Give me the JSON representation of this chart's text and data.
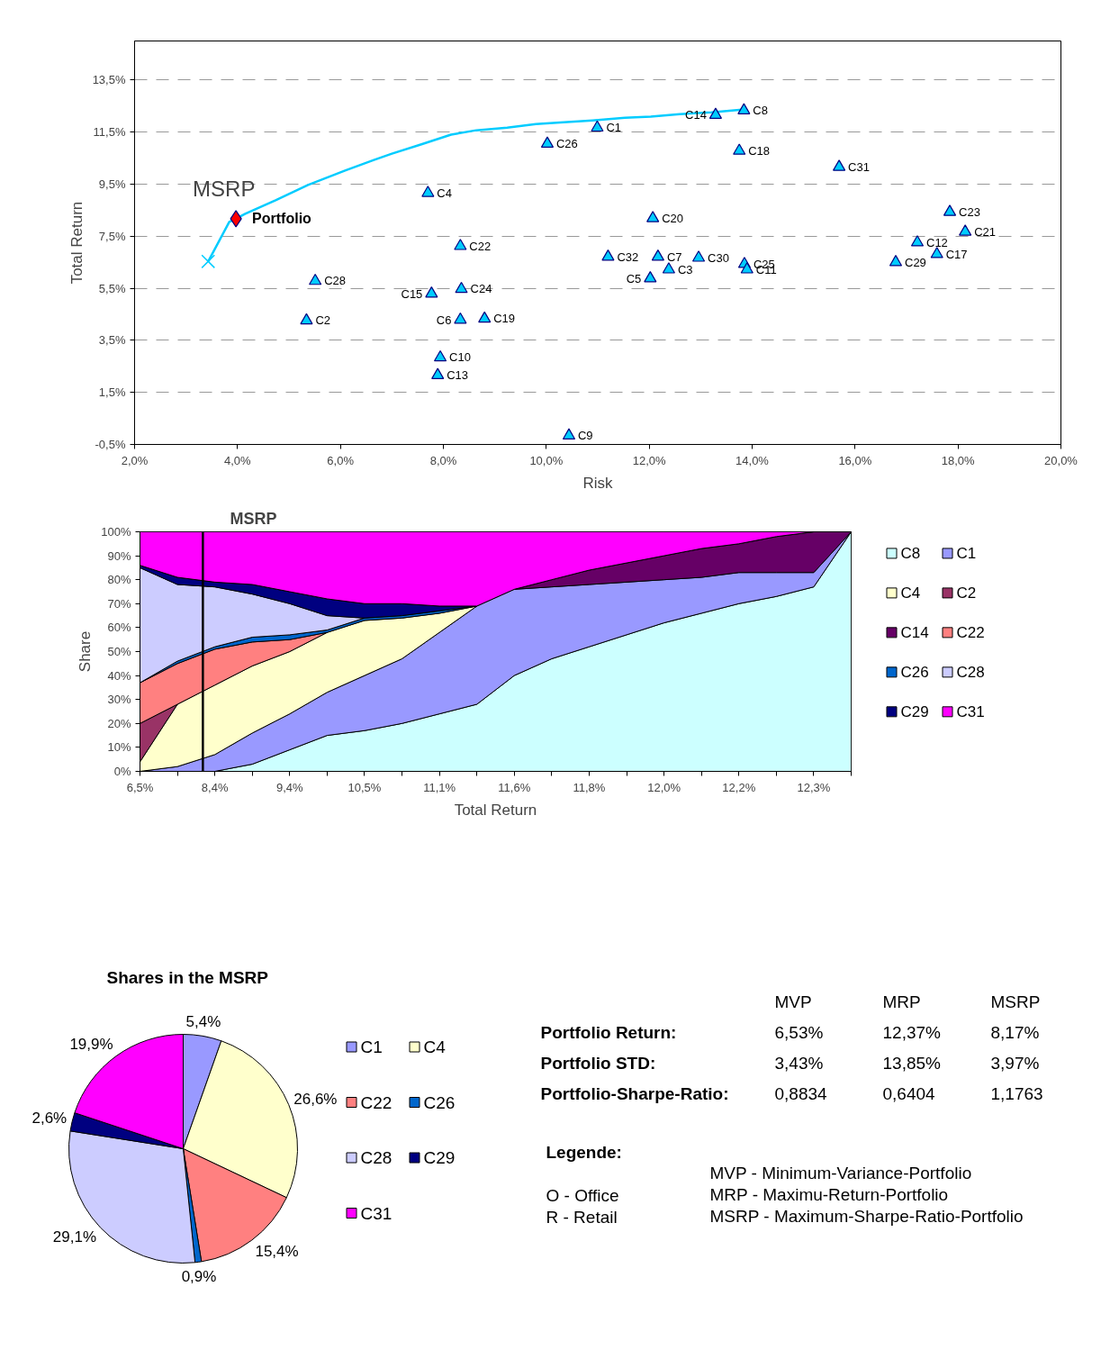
{
  "chart_data": [
    {
      "type": "scatter",
      "xlabel": "Risk",
      "ylabel": "Total Return",
      "xlim": [
        2,
        20
      ],
      "ylim": [
        -0.5,
        15
      ],
      "xticks": [
        {
          "value": 2,
          "label": "2,0%"
        },
        {
          "value": 4,
          "label": "4,0%"
        },
        {
          "value": 6,
          "label": "6,0%"
        },
        {
          "value": 8,
          "label": "8,0%"
        },
        {
          "value": 10,
          "label": "10,0%"
        },
        {
          "value": 12,
          "label": "12,0%"
        },
        {
          "value": 14,
          "label": "14,0%"
        },
        {
          "value": 16,
          "label": "16,0%"
        },
        {
          "value": 18,
          "label": "18,0%"
        },
        {
          "value": 20,
          "label": "20,0%"
        }
      ],
      "yticks": [
        {
          "value": -0.5,
          "label": "-0,5%"
        },
        {
          "value": 1.5,
          "label": "1,5%"
        },
        {
          "value": 3.5,
          "label": "3,5%"
        },
        {
          "value": 5.5,
          "label": "5,5%"
        },
        {
          "value": 7.5,
          "label": "7,5%"
        },
        {
          "value": 9.5,
          "label": "9,5%"
        },
        {
          "value": 11.5,
          "label": "11,5%"
        },
        {
          "value": 13.5,
          "label": "13,5%"
        }
      ],
      "grid": "y",
      "marker": "triangle",
      "color": "#00ccff",
      "annotations": [
        {
          "text": "MSRP",
          "x": 3.97,
          "y": 8.17
        }
      ],
      "series": [
        {
          "type": "line",
          "marker": "none",
          "x": [
            3.43,
            3.84,
            3.97,
            4.15,
            4.74,
            5.37,
            6.09,
            6.65,
            7.0,
            7.56,
            8.15,
            8.64,
            9.24,
            9.8,
            10.34,
            10.9,
            11.53,
            12.03,
            12.59,
            13.21,
            13.85
          ],
          "values": [
            6.53,
            8.05,
            8.17,
            8.36,
            8.88,
            9.47,
            10.02,
            10.43,
            10.67,
            11.02,
            11.4,
            11.57,
            11.67,
            11.81,
            11.88,
            11.95,
            12.05,
            12.09,
            12.19,
            12.26,
            12.37
          ]
        },
        {
          "marker": "cross",
          "x": [
            3.43
          ],
          "values": [
            6.53
          ]
        },
        {
          "name": "Portfolio",
          "marker": "diamond",
          "color": "#ff0000",
          "x": [
            3.97
          ],
          "values": [
            8.17
          ]
        },
        {
          "name": "C8",
          "x": [
            13.84
          ],
          "values": [
            12.33
          ]
        },
        {
          "name": "C14",
          "x": [
            13.29
          ],
          "values": [
            12.16
          ]
        },
        {
          "name": "C1",
          "x": [
            10.99
          ],
          "values": [
            11.67
          ]
        },
        {
          "name": "C26",
          "x": [
            10.02
          ],
          "values": [
            11.05
          ]
        },
        {
          "name": "C18",
          "x": [
            13.75
          ],
          "values": [
            10.78
          ]
        },
        {
          "name": "C31",
          "x": [
            15.69
          ],
          "values": [
            10.16
          ]
        },
        {
          "name": "C4",
          "x": [
            7.7
          ],
          "values": [
            9.16
          ]
        },
        {
          "name": "C20",
          "x": [
            12.07
          ],
          "values": [
            8.19
          ]
        },
        {
          "name": "C23",
          "x": [
            17.84
          ],
          "values": [
            8.43
          ]
        },
        {
          "name": "C21",
          "x": [
            18.14
          ],
          "values": [
            7.67
          ]
        },
        {
          "name": "C22",
          "x": [
            8.33
          ],
          "values": [
            7.12
          ]
        },
        {
          "name": "C12",
          "x": [
            17.21
          ],
          "values": [
            7.26
          ]
        },
        {
          "name": "C17",
          "x": [
            17.59
          ],
          "values": [
            6.81
          ]
        },
        {
          "name": "C32",
          "x": [
            11.2
          ],
          "values": [
            6.71
          ]
        },
        {
          "name": "C7",
          "x": [
            12.17
          ],
          "values": [
            6.71
          ]
        },
        {
          "name": "C30",
          "x": [
            12.96
          ],
          "values": [
            6.67
          ]
        },
        {
          "name": "C29",
          "x": [
            16.79
          ],
          "values": [
            6.5
          ]
        },
        {
          "name": "C25",
          "x": [
            13.85
          ],
          "values": [
            6.43
          ]
        },
        {
          "name": "C11",
          "x": [
            13.9
          ],
          "values": [
            6.22
          ]
        },
        {
          "name": "C3",
          "x": [
            12.38
          ],
          "values": [
            6.22
          ]
        },
        {
          "name": "C5",
          "x": [
            12.02
          ],
          "values": [
            5.88
          ]
        },
        {
          "name": "C28",
          "x": [
            5.51
          ],
          "values": [
            5.78
          ]
        },
        {
          "name": "C15",
          "x": [
            7.77
          ],
          "values": [
            5.29
          ]
        },
        {
          "name": "C24",
          "x": [
            8.35
          ],
          "values": [
            5.47
          ]
        },
        {
          "name": "C2",
          "x": [
            5.34
          ],
          "values": [
            4.26
          ]
        },
        {
          "name": "C6",
          "x": [
            8.33
          ],
          "values": [
            4.29
          ]
        },
        {
          "name": "C19",
          "x": [
            8.8
          ],
          "values": [
            4.33
          ]
        },
        {
          "name": "C10",
          "x": [
            7.94
          ],
          "values": [
            2.84
          ]
        },
        {
          "name": "C13",
          "x": [
            7.89
          ],
          "values": [
            2.16
          ]
        },
        {
          "name": "C9",
          "x": [
            10.44
          ],
          "values": [
            -0.16
          ]
        }
      ]
    },
    {
      "type": "area",
      "stacked": true,
      "xlabel": "Total Return",
      "ylabel": "Share",
      "ylim": [
        0,
        100
      ],
      "legend": "right",
      "categories": [
        "6,5%",
        null,
        "8,4%",
        null,
        "9,4%",
        null,
        "10,5%",
        null,
        "11,1%",
        null,
        "11,6%",
        null,
        "11,8%",
        null,
        "12,0%",
        null,
        "12,2%",
        null,
        "12,3%",
        null
      ],
      "yticks": [
        {
          "value": 0,
          "label": "0%"
        },
        {
          "value": 10,
          "label": "10%"
        },
        {
          "value": 20,
          "label": "20%"
        },
        {
          "value": 30,
          "label": "30%"
        },
        {
          "value": 40,
          "label": "40%"
        },
        {
          "value": 50,
          "label": "50%"
        },
        {
          "value": 60,
          "label": "60%"
        },
        {
          "value": 70,
          "label": "70%"
        },
        {
          "value": 80,
          "label": "80%"
        },
        {
          "value": 90,
          "label": "90%"
        },
        {
          "value": 100,
          "label": "100%"
        }
      ],
      "annotations": [
        "MSRP"
      ],
      "series": [
        {
          "name": "C8",
          "color": "#ccffff",
          "values": [
            null,
            null,
            0,
            3,
            9,
            15,
            17,
            20,
            24,
            28,
            40,
            47,
            52,
            57,
            62,
            66,
            70,
            73,
            77,
            100
          ]
        },
        {
          "name": "C1",
          "color": "#9999ff",
          "values": [
            0,
            2,
            7,
            13,
            15,
            18,
            23,
            27,
            34,
            41,
            36,
            30,
            26,
            22,
            18,
            15,
            13,
            10,
            6,
            0
          ]
        },
        {
          "name": "C4",
          "color": "#ffffcc",
          "values": [
            4,
            26,
            29,
            28,
            26,
            25,
            23,
            17,
            8,
            0,
            null,
            null,
            null,
            null,
            null,
            null,
            null,
            null,
            null,
            null
          ]
        },
        {
          "name": "C2",
          "color": "#993366",
          "values": [
            16,
            0,
            null,
            null,
            null,
            null,
            null,
            null,
            null,
            null,
            null,
            null,
            null,
            null,
            null,
            null,
            null,
            null,
            null,
            null
          ]
        },
        {
          "name": "C14",
          "color": "#660066",
          "values": [
            null,
            null,
            null,
            null,
            null,
            null,
            null,
            null,
            null,
            null,
            0,
            3,
            6,
            8,
            10,
            12,
            12,
            15,
            17,
            0
          ]
        },
        {
          "name": "C22",
          "color": "#ff8080",
          "values": [
            17,
            17,
            15,
            10,
            5,
            0,
            null,
            null,
            null,
            null,
            null,
            null,
            null,
            null,
            null,
            null,
            null,
            null,
            null,
            null
          ]
        },
        {
          "name": "C26",
          "color": "#0066cc",
          "values": [
            0,
            1,
            1,
            2,
            2,
            1,
            1,
            1,
            1,
            0,
            null,
            null,
            null,
            null,
            null,
            null,
            null,
            null,
            null,
            null
          ]
        },
        {
          "name": "C28",
          "color": "#ccccff",
          "values": [
            48,
            32,
            25,
            18,
            13,
            6,
            0,
            null,
            null,
            null,
            null,
            null,
            null,
            null,
            null,
            null,
            null,
            null,
            null,
            null
          ]
        },
        {
          "name": "C29",
          "color": "#000080",
          "values": [
            1,
            3,
            2,
            4,
            5,
            7,
            6,
            5,
            2,
            0,
            null,
            null,
            null,
            null,
            null,
            null,
            null,
            null,
            null,
            null
          ]
        },
        {
          "name": "C31",
          "color": "#ff00ff",
          "values": [
            14,
            19,
            21,
            22,
            25,
            28,
            30,
            30,
            31,
            31,
            24,
            20,
            16,
            13,
            10,
            7,
            5,
            2,
            0,
            null
          ]
        }
      ]
    },
    {
      "type": "pie",
      "title": "Shares in the MSRP",
      "legend": "right",
      "categories": [
        "C1",
        "C4",
        "C22",
        "C26",
        "C28",
        "C29",
        "C31"
      ],
      "values": [
        5.4,
        26.6,
        15.4,
        0.9,
        29.1,
        2.6,
        19.9
      ],
      "value_labels": [
        "5,4%",
        "26,6%",
        "15,4%",
        "0,9%",
        "29,1%",
        "2,6%",
        "19,9%"
      ],
      "colors": [
        "#9999ff",
        "#ffffcc",
        "#ff8080",
        "#0066cc",
        "#ccccff",
        "#000080",
        "#ff00ff"
      ]
    },
    {
      "type": "other",
      "categories": [
        "MVP",
        "MRP",
        "MSRP"
      ],
      "y_categories": [
        "Portfolio Return:",
        "Portfolio STD:",
        "Portfolio-Sharpe-Ratio:"
      ],
      "cell_labels": [
        [
          "6,53%",
          "12,37%",
          "8,17%"
        ],
        [
          "3,43%",
          "13,85%",
          "3,97%"
        ],
        [
          "0,8834",
          "0,6404",
          "1,1763"
        ]
      ]
    },
    {
      "type": "other",
      "title": "Legende:",
      "annotations": [
        "O - Office",
        "R - Retail",
        "MVP - Minimum-Variance-Portfolio",
        "MRP - Maximu-Return-Portfolio",
        "MSRP - Maximum-Sharpe-Ratio-Portfolio"
      ]
    }
  ]
}
